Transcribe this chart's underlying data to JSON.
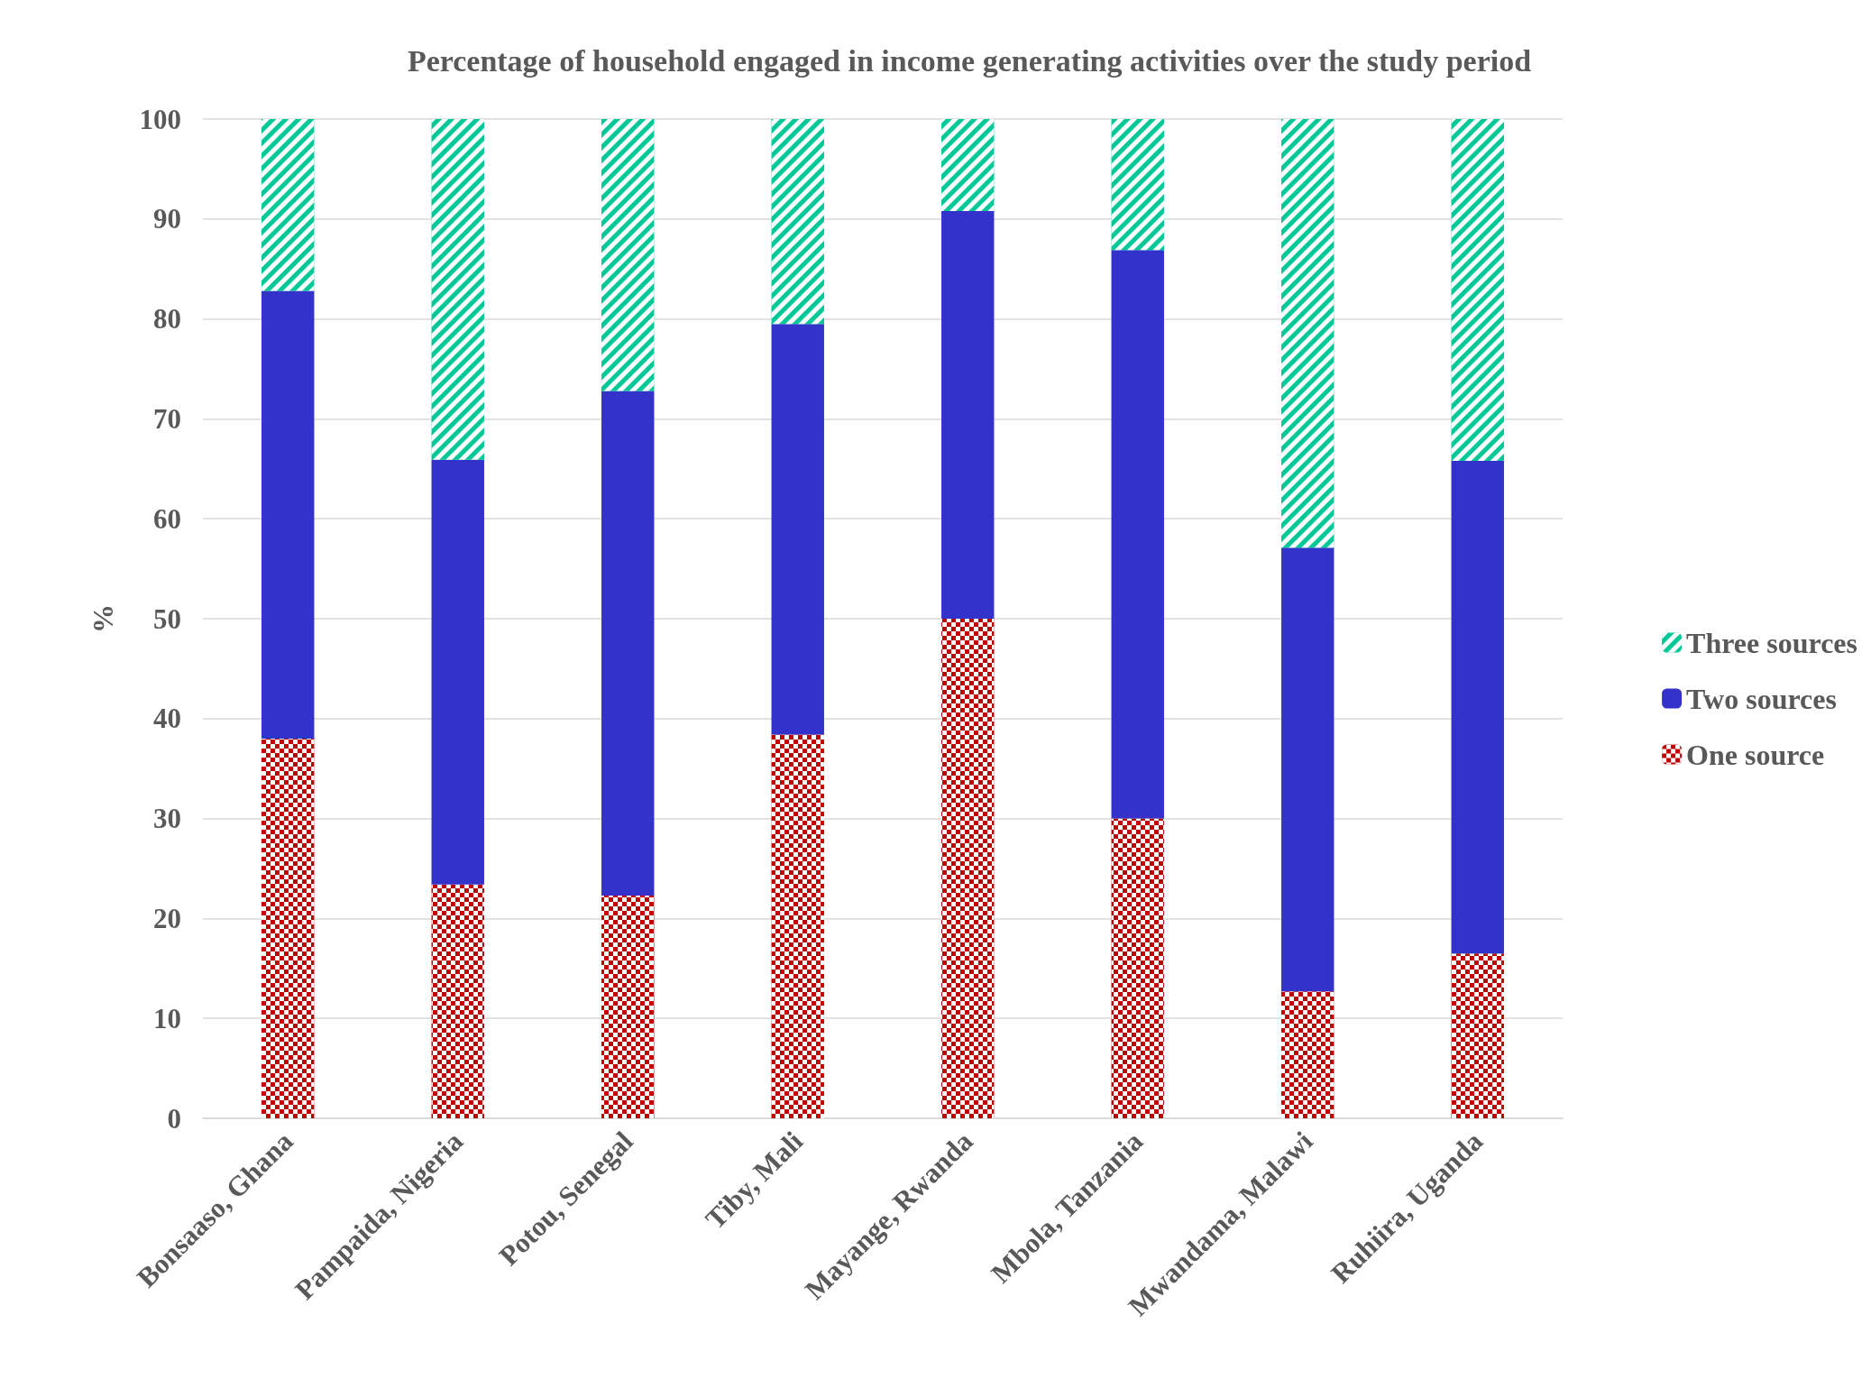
{
  "chart_data": {
    "type": "bar",
    "title": "Percentage of household engaged in income generating activities over the study period",
    "ylabel": "%",
    "categories": [
      "Bonsaaso, Ghana",
      "Pampaida, Nigeria",
      "Potou, Senegal",
      "Tiby, Mali",
      "Mayange, Rwanda",
      "Mbola, Tanzania",
      "Mwandama, Malawi",
      "Ruhiira, Uganda"
    ],
    "series": [
      {
        "name": "One source",
        "color": "#c00000",
        "values": [
          38,
          23.4,
          22.3,
          38.4,
          50,
          30,
          12.7,
          16.5
        ]
      },
      {
        "name": "Two sources",
        "color": "#3333cc",
        "values": [
          44.8,
          42.5,
          50.5,
          41.1,
          40.8,
          56.9,
          44.4,
          49.3
        ]
      },
      {
        "name": "Three sources",
        "color": "#00c896",
        "values": [
          17.2,
          34.1,
          27.2,
          20.5,
          9.2,
          13.1,
          42.9,
          34.2
        ]
      }
    ],
    "stacked": true,
    "ylim": [
      0,
      100
    ],
    "yticks": [
      0,
      10,
      20,
      30,
      40,
      50,
      60,
      70,
      80,
      90,
      100
    ],
    "grid": "y",
    "legend": "right"
  }
}
